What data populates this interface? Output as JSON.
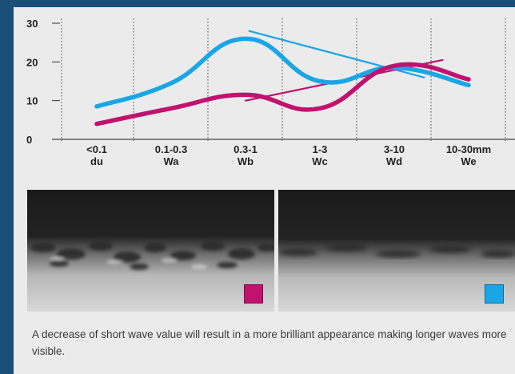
{
  "chart_data": {
    "type": "line",
    "categories": [
      [
        "<0.1",
        "du"
      ],
      [
        "0.1-0.3",
        "Wa"
      ],
      [
        "0.3-1",
        "Wb"
      ],
      [
        "1-3",
        "Wc"
      ],
      [
        "3-10",
        "Wd"
      ],
      [
        "10-30mm",
        "We"
      ]
    ],
    "yticks": [
      0,
      10,
      20,
      30
    ],
    "ylim": [
      0,
      30
    ],
    "grid": "vertical dotted",
    "series": [
      {
        "color": "#1aa6e6",
        "style": "curve",
        "values": [
          8.5,
          14.5,
          26,
          15,
          18.5,
          14
        ]
      },
      {
        "color": "#c0126e",
        "style": "curve",
        "values": [
          4,
          8,
          11.5,
          8,
          19,
          15.5
        ]
      },
      {
        "color": "#1aa6e6",
        "style": "trend",
        "from": {
          "x": 2.05,
          "y": 28
        },
        "to": {
          "x": 4.4,
          "y": 16
        }
      },
      {
        "color": "#c0126e",
        "style": "trend",
        "from": {
          "x": 2.0,
          "y": 10
        },
        "to": {
          "x": 4.65,
          "y": 20.5
        }
      }
    ]
  },
  "photos": [
    {
      "name": "magenta-sample",
      "swatch_color": "#c0126e"
    },
    {
      "name": "cyan-sample",
      "swatch_color": "#1aa6e6"
    }
  ],
  "caption": "A decrease of short wave value will result in a more brilliant appearance making longer waves more visible."
}
